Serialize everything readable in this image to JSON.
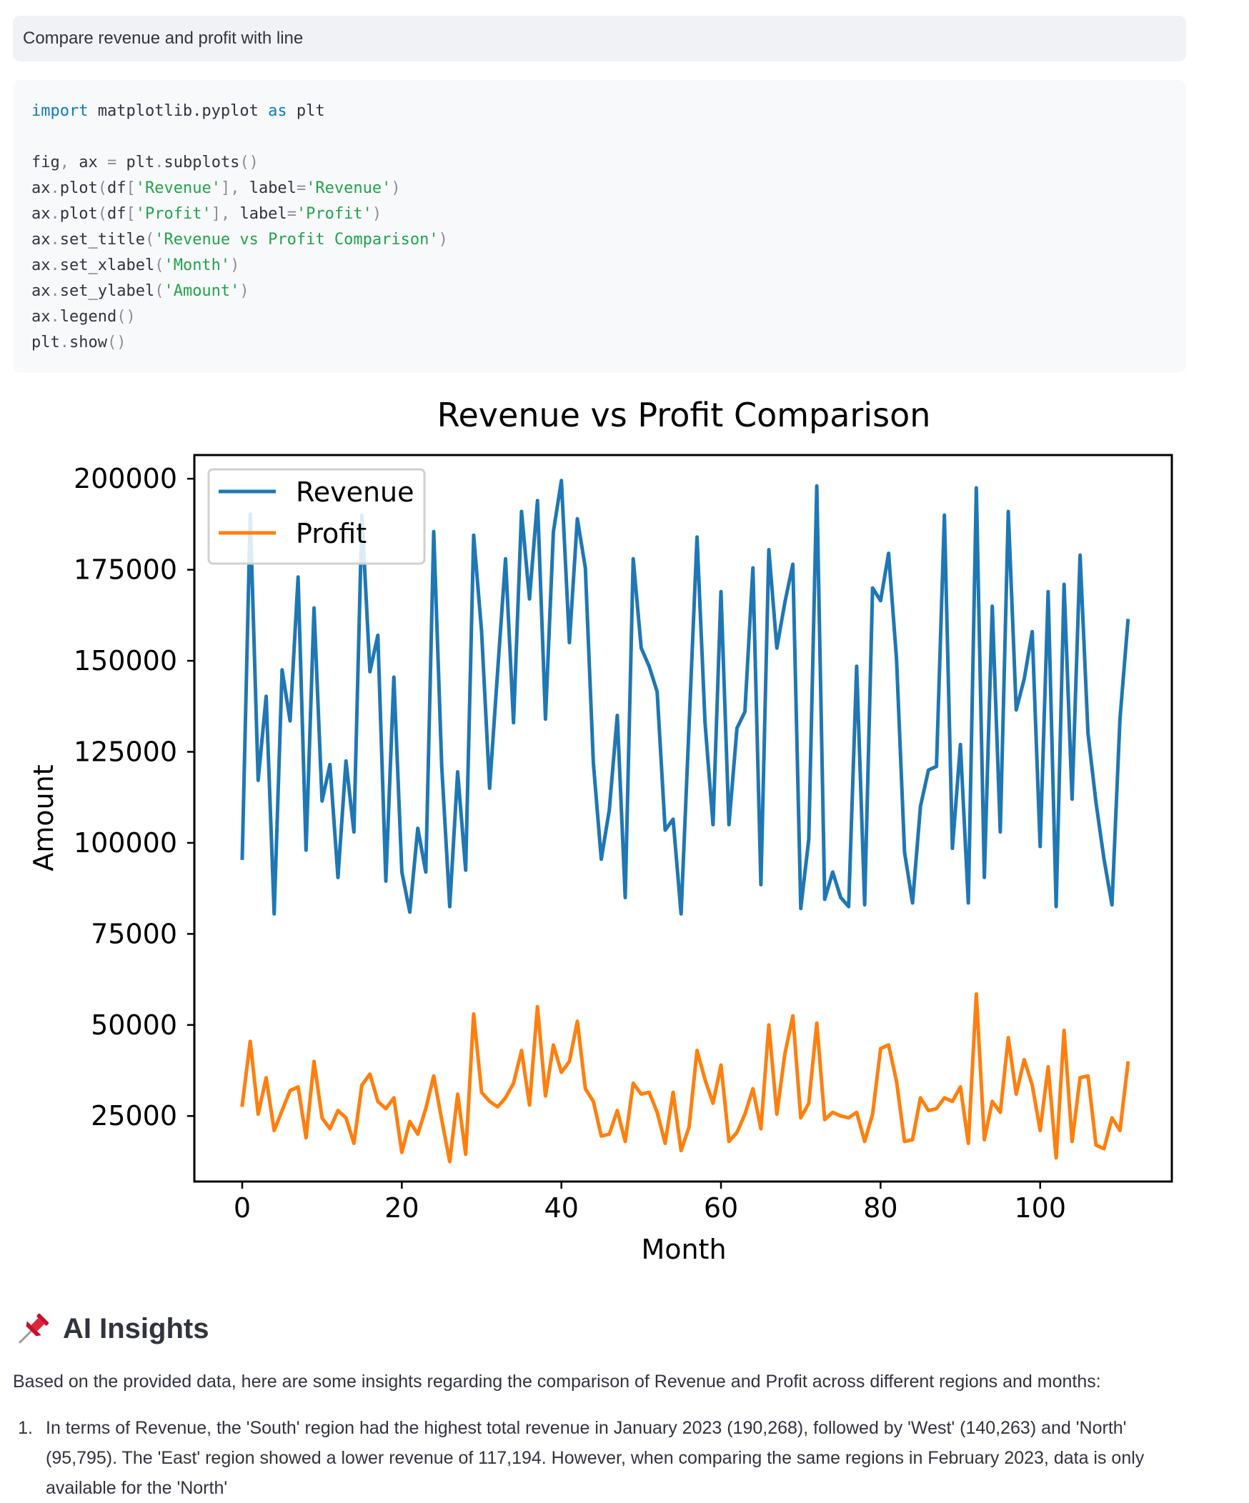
{
  "prompt": {
    "text": "Compare revenue and profit with line"
  },
  "code": {
    "lines": [
      [
        {
          "t": "import",
          "c": "kw"
        },
        {
          "t": " matplotlib.pyplot ",
          "c": ""
        },
        {
          "t": "as",
          "c": "kw"
        },
        {
          "t": " plt",
          "c": ""
        }
      ],
      [],
      [
        {
          "t": "fig",
          "c": ""
        },
        {
          "t": ",",
          "c": "pun"
        },
        {
          "t": " ax ",
          "c": ""
        },
        {
          "t": "=",
          "c": "pun"
        },
        {
          "t": " plt",
          "c": ""
        },
        {
          "t": ".",
          "c": "pun"
        },
        {
          "t": "subplots",
          "c": ""
        },
        {
          "t": "()",
          "c": "pun"
        }
      ],
      [
        {
          "t": "ax",
          "c": ""
        },
        {
          "t": ".",
          "c": "pun"
        },
        {
          "t": "plot",
          "c": ""
        },
        {
          "t": "(",
          "c": "pun"
        },
        {
          "t": "df",
          "c": ""
        },
        {
          "t": "[",
          "c": "pun"
        },
        {
          "t": "'Revenue'",
          "c": "str"
        },
        {
          "t": "],",
          "c": "pun"
        },
        {
          "t": " label",
          "c": ""
        },
        {
          "t": "=",
          "c": "pun"
        },
        {
          "t": "'Revenue'",
          "c": "str"
        },
        {
          "t": ")",
          "c": "pun"
        }
      ],
      [
        {
          "t": "ax",
          "c": ""
        },
        {
          "t": ".",
          "c": "pun"
        },
        {
          "t": "plot",
          "c": ""
        },
        {
          "t": "(",
          "c": "pun"
        },
        {
          "t": "df",
          "c": ""
        },
        {
          "t": "[",
          "c": "pun"
        },
        {
          "t": "'Profit'",
          "c": "str"
        },
        {
          "t": "],",
          "c": "pun"
        },
        {
          "t": " label",
          "c": ""
        },
        {
          "t": "=",
          "c": "pun"
        },
        {
          "t": "'Profit'",
          "c": "str"
        },
        {
          "t": ")",
          "c": "pun"
        }
      ],
      [
        {
          "t": "ax",
          "c": ""
        },
        {
          "t": ".",
          "c": "pun"
        },
        {
          "t": "set_title",
          "c": ""
        },
        {
          "t": "(",
          "c": "pun"
        },
        {
          "t": "'Revenue vs Profit Comparison'",
          "c": "str"
        },
        {
          "t": ")",
          "c": "pun"
        }
      ],
      [
        {
          "t": "ax",
          "c": ""
        },
        {
          "t": ".",
          "c": "pun"
        },
        {
          "t": "set_xlabel",
          "c": ""
        },
        {
          "t": "(",
          "c": "pun"
        },
        {
          "t": "'Month'",
          "c": "str"
        },
        {
          "t": ")",
          "c": "pun"
        }
      ],
      [
        {
          "t": "ax",
          "c": ""
        },
        {
          "t": ".",
          "c": "pun"
        },
        {
          "t": "set_ylabel",
          "c": ""
        },
        {
          "t": "(",
          "c": "pun"
        },
        {
          "t": "'Amount'",
          "c": "str"
        },
        {
          "t": ")",
          "c": "pun"
        }
      ],
      [
        {
          "t": "ax",
          "c": ""
        },
        {
          "t": ".",
          "c": "pun"
        },
        {
          "t": "legend",
          "c": ""
        },
        {
          "t": "()",
          "c": "pun"
        }
      ],
      [
        {
          "t": "plt",
          "c": ""
        },
        {
          "t": ".",
          "c": "pun"
        },
        {
          "t": "show",
          "c": ""
        },
        {
          "t": "()",
          "c": "pun"
        }
      ]
    ]
  },
  "chart_data": {
    "type": "line",
    "title": "Revenue vs Profit Comparison",
    "xlabel": "Month",
    "ylabel": "Amount",
    "xlim": [
      -6,
      116.5
    ],
    "ylim": [
      7000,
      206500
    ],
    "xticks": [
      0,
      20,
      40,
      60,
      80,
      100
    ],
    "yticks": [
      25000,
      50000,
      75000,
      100000,
      125000,
      150000,
      175000,
      200000
    ],
    "legend": "upper left",
    "grid": false,
    "series": [
      {
        "name": "Revenue",
        "color": "#1f77b4",
        "values": [
          95795,
          190268,
          117194,
          140263,
          80500,
          147500,
          133500,
          173000,
          98000,
          164500,
          111500,
          121500,
          90500,
          122500,
          103000,
          190000,
          147000,
          157000,
          89500,
          145500,
          92000,
          81000,
          104000,
          92000,
          185500,
          121000,
          82500,
          119500,
          92500,
          184500,
          158000,
          115000,
          147000,
          178000,
          133000,
          191000,
          167000,
          194000,
          134000,
          185500,
          199500,
          155000,
          189000,
          175500,
          122000,
          95500,
          109000,
          135000,
          85000,
          178000,
          153500,
          148500,
          141500,
          103500,
          106500,
          80500,
          132500,
          184000,
          133000,
          105000,
          169000,
          105000,
          131500,
          136000,
          175500,
          88500,
          180500,
          153500,
          166000,
          176500,
          82000,
          101000,
          198000,
          84500,
          92000,
          85000,
          82500,
          148500,
          83000,
          170000,
          166500,
          179500,
          150500,
          97500,
          83500,
          110000,
          120000,
          121000,
          190000,
          98500,
          127000,
          83500,
          197500,
          90500,
          165000,
          103000,
          191000,
          136500,
          145000,
          158000,
          99000,
          169000,
          82500,
          171000,
          112000,
          179000,
          130000,
          111000,
          95500,
          83000,
          134000,
          161000
        ]
      },
      {
        "name": "Profit",
        "color": "#ff7f0e",
        "values": [
          28000,
          45500,
          25500,
          35500,
          21000,
          26500,
          32000,
          33000,
          19000,
          40000,
          24500,
          21500,
          26500,
          24500,
          17500,
          33500,
          36500,
          29000,
          27000,
          30000,
          15000,
          23500,
          20000,
          27000,
          36000,
          24000,
          12500,
          31000,
          14500,
          53000,
          31500,
          29000,
          27500,
          30000,
          34000,
          43000,
          28000,
          55000,
          30500,
          44500,
          37000,
          40000,
          51000,
          32500,
          29000,
          19500,
          20000,
          26500,
          18000,
          34000,
          31000,
          31500,
          26000,
          17500,
          31500,
          15500,
          22000,
          43000,
          35000,
          28500,
          39000,
          18000,
          20500,
          25500,
          32500,
          21500,
          50000,
          25500,
          42000,
          52500,
          24500,
          28500,
          50500,
          24000,
          26000,
          25000,
          24500,
          26000,
          18000,
          25500,
          43500,
          44500,
          34500,
          18000,
          18500,
          30000,
          26500,
          27000,
          30000,
          29000,
          33000,
          17500,
          58500,
          18500,
          29000,
          26000,
          46500,
          31000,
          40500,
          33500,
          21000,
          38500,
          13500,
          48500,
          18000,
          35500,
          36000,
          17000,
          16000,
          24500,
          21000,
          39500
        ]
      }
    ]
  },
  "insights": {
    "icon": "pushpin-icon",
    "title": "AI Insights",
    "intro": "Based on the provided data, here are some insights regarding the comparison of Revenue and Profit across different regions and months:",
    "items": [
      {
        "num": "1.",
        "text": "In terms of Revenue, the 'South' region had the highest total revenue in January 2023 (190,268), followed by 'West' (140,263) and 'North' (95,795). The 'East' region showed a lower revenue of 117,194. However, when comparing the same regions in February 2023, data is only available for the 'North'"
      }
    ]
  }
}
